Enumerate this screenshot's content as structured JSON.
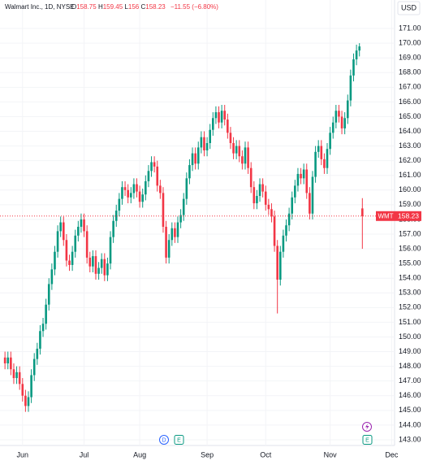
{
  "chart_data": {
    "type": "candlestick",
    "title": "Walmart Inc., 1D, NYSE",
    "ohlc_labels": [
      "O",
      "H",
      "L",
      "C"
    ],
    "change_label": "−11.55 (−6.80%)",
    "currency": "USD",
    "symbol": "WMT",
    "events": [
      "D",
      "E",
      "E"
    ],
    "up_color": "#089981",
    "down_color": "#f23645",
    "xlim": [
      -1.7,
      133
    ],
    "xticks": [
      {
        "value": 6,
        "label": "Jun"
      },
      {
        "value": 27,
        "label": "Jul"
      },
      {
        "value": 46,
        "label": "Aug"
      },
      {
        "value": 69,
        "label": "Sep"
      },
      {
        "value": 89,
        "label": "Oct"
      },
      {
        "value": 111,
        "label": "Nov"
      },
      {
        "value": 132,
        "label": "Dec"
      }
    ],
    "ylim": [
      142.61,
      172.94
    ],
    "yticks": [
      {
        "value": 143,
        "label": "143.00"
      },
      {
        "value": 144,
        "label": "144.00"
      },
      {
        "value": 145,
        "label": "145.00"
      },
      {
        "value": 146,
        "label": "146.00"
      },
      {
        "value": 147,
        "label": "147.00"
      },
      {
        "value": 148,
        "label": "148.00"
      },
      {
        "value": 149,
        "label": "149.00"
      },
      {
        "value": 150,
        "label": "150.00"
      },
      {
        "value": 151,
        "label": "151.00"
      },
      {
        "value": 152,
        "label": "152.00"
      },
      {
        "value": 153,
        "label": "153.00"
      },
      {
        "value": 154,
        "label": "154.00"
      },
      {
        "value": 155,
        "label": "155.00"
      },
      {
        "value": 156,
        "label": "156.00"
      },
      {
        "value": 157,
        "label": "157.00"
      },
      {
        "value": 158,
        "label": "158.00"
      },
      {
        "value": 159,
        "label": "159.00"
      },
      {
        "value": 160,
        "label": "160.00"
      },
      {
        "value": 161,
        "label": "161.00"
      },
      {
        "value": 162,
        "label": "162.00"
      },
      {
        "value": 163,
        "label": "163.00"
      },
      {
        "value": 164,
        "label": "164.00"
      },
      {
        "value": 165,
        "label": "165.00"
      },
      {
        "value": 166,
        "label": "166.00"
      },
      {
        "value": 167,
        "label": "167.00"
      },
      {
        "value": 168,
        "label": "168.00"
      },
      {
        "value": 169,
        "label": "169.00"
      },
      {
        "value": 170,
        "label": "170.00"
      },
      {
        "value": 171,
        "label": "171.00"
      }
    ],
    "open": [
      148.6,
      148.2,
      148.6,
      147.8,
      147.2,
      147.6,
      146.8,
      146.0,
      145.3,
      145.9,
      147.4,
      148.5,
      149.2,
      150.4,
      150.9,
      152.2,
      153.6,
      154.6,
      155.8,
      157.2,
      157.8,
      156.6,
      155.2,
      154.9,
      155.8,
      156.9,
      157.5,
      158.0,
      157.2,
      155.4,
      154.8,
      155.5,
      154.3,
      154.7,
      155.3,
      154.2,
      155.0,
      156.8,
      157.9,
      158.6,
      159.4,
      160.2,
      160.0,
      159.5,
      159.8,
      160.4,
      159.9,
      159.2,
      159.7,
      160.6,
      161.3,
      161.9,
      161.6,
      160.3,
      159.8,
      157.5,
      155.4,
      156.6,
      157.4,
      156.8,
      157.8,
      158.3,
      159.4,
      160.8,
      161.7,
      162.5,
      161.8,
      162.9,
      163.6,
      162.7,
      163.2,
      164.1,
      164.9,
      165.3,
      164.6,
      165.4,
      164.8,
      163.9,
      163.2,
      162.5,
      163.0,
      162.3,
      161.8,
      162.9,
      161.5,
      160.2,
      159.1,
      159.6,
      160.4,
      159.9,
      159.0,
      158.7,
      158.2,
      156.2,
      153.9,
      155.8,
      156.9,
      157.6,
      158.4,
      159.5,
      160.3,
      161.1,
      160.8,
      161.4,
      159.8,
      158.4,
      160.9,
      162.6,
      163.0,
      162.1,
      161.5,
      162.8,
      163.9,
      164.6,
      165.4,
      165.0,
      164.2,
      164.9,
      166.1,
      167.8,
      168.9,
      169.5,
      158.75
    ],
    "high": [
      149.0,
      149.0,
      149.0,
      148.2,
      148.0,
      148.0,
      147.2,
      146.4,
      146.3,
      147.8,
      148.9,
      149.6,
      150.8,
      151.3,
      152.6,
      154.0,
      155.0,
      156.2,
      157.6,
      158.2,
      158.2,
      157.0,
      155.6,
      156.2,
      157.3,
      157.9,
      158.4,
      158.4,
      157.6,
      155.8,
      155.9,
      155.9,
      155.1,
      155.7,
      155.7,
      155.4,
      157.2,
      158.3,
      159.0,
      159.8,
      160.6,
      160.6,
      160.4,
      160.2,
      160.8,
      160.8,
      160.3,
      160.1,
      161.0,
      161.7,
      162.3,
      162.3,
      162.0,
      160.7,
      160.2,
      157.9,
      157.0,
      157.8,
      157.8,
      158.2,
      158.7,
      159.8,
      161.2,
      162.1,
      162.9,
      162.9,
      163.3,
      164.0,
      164.0,
      163.6,
      164.5,
      165.3,
      165.7,
      165.7,
      165.8,
      165.8,
      165.2,
      164.3,
      163.6,
      163.4,
      163.4,
      162.7,
      163.3,
      163.3,
      161.9,
      160.6,
      160.0,
      160.8,
      160.8,
      160.3,
      159.4,
      159.1,
      158.6,
      156.6,
      156.2,
      157.3,
      158.0,
      158.8,
      159.9,
      160.7,
      161.5,
      161.5,
      161.8,
      161.8,
      160.2,
      161.3,
      163.0,
      163.4,
      163.4,
      162.5,
      163.2,
      164.3,
      165.0,
      165.8,
      165.8,
      165.4,
      165.3,
      166.5,
      168.2,
      169.3,
      169.9,
      170.0,
      159.45
    ],
    "low": [
      147.8,
      147.8,
      147.4,
      146.8,
      146.8,
      146.4,
      145.6,
      144.9,
      144.9,
      145.5,
      147.0,
      148.1,
      148.8,
      150.0,
      150.5,
      151.8,
      153.2,
      154.2,
      155.4,
      156.8,
      156.2,
      154.8,
      154.5,
      154.5,
      155.4,
      156.5,
      157.1,
      156.8,
      155.0,
      154.4,
      154.4,
      153.9,
      153.9,
      154.3,
      153.8,
      153.8,
      154.6,
      156.4,
      157.5,
      158.2,
      159.0,
      159.6,
      159.1,
      159.1,
      159.4,
      159.5,
      158.8,
      158.8,
      159.3,
      160.2,
      160.9,
      161.2,
      159.9,
      159.4,
      157.1,
      155.0,
      155.0,
      156.2,
      156.4,
      156.4,
      157.4,
      157.9,
      159.0,
      160.4,
      161.3,
      161.4,
      161.4,
      162.5,
      162.3,
      162.3,
      162.8,
      163.7,
      164.5,
      164.2,
      164.2,
      164.4,
      163.5,
      162.8,
      162.1,
      162.1,
      161.9,
      161.4,
      161.4,
      161.1,
      159.8,
      158.7,
      158.7,
      159.2,
      159.5,
      158.6,
      158.3,
      157.8,
      155.8,
      151.6,
      153.5,
      155.4,
      156.5,
      157.2,
      158.0,
      159.1,
      159.9,
      160.4,
      160.4,
      159.4,
      158.0,
      158.0,
      160.5,
      162.2,
      161.7,
      161.1,
      161.1,
      162.4,
      163.5,
      164.2,
      164.6,
      163.8,
      163.8,
      164.5,
      165.7,
      167.4,
      168.5,
      169.1,
      156.0
    ],
    "close": [
      148.2,
      148.6,
      147.8,
      147.2,
      147.6,
      146.8,
      146.0,
      145.3,
      145.9,
      147.4,
      148.5,
      149.2,
      150.4,
      150.9,
      152.2,
      153.6,
      154.6,
      155.8,
      157.2,
      157.8,
      156.6,
      155.2,
      154.9,
      155.8,
      156.9,
      157.5,
      158.0,
      157.2,
      155.4,
      154.8,
      155.5,
      154.3,
      154.7,
      155.3,
      154.2,
      155.0,
      156.8,
      157.9,
      158.6,
      159.4,
      160.2,
      160.0,
      159.5,
      159.8,
      160.4,
      159.9,
      159.2,
      159.7,
      160.6,
      161.3,
      161.9,
      161.6,
      160.3,
      159.8,
      157.5,
      155.4,
      156.6,
      157.4,
      156.8,
      157.8,
      158.3,
      159.4,
      160.8,
      161.7,
      162.5,
      161.8,
      162.9,
      163.6,
      162.7,
      163.2,
      164.1,
      164.9,
      165.3,
      164.6,
      165.4,
      164.8,
      163.9,
      163.2,
      162.5,
      163.0,
      162.3,
      161.8,
      162.9,
      161.5,
      160.2,
      159.1,
      159.6,
      160.4,
      159.9,
      159.0,
      158.7,
      158.2,
      156.2,
      153.9,
      155.8,
      156.9,
      157.6,
      158.4,
      159.5,
      160.3,
      161.1,
      160.8,
      161.4,
      159.8,
      158.4,
      160.9,
      162.6,
      163.0,
      162.1,
      161.5,
      162.8,
      163.9,
      164.6,
      165.4,
      165.0,
      164.2,
      164.9,
      166.1,
      167.8,
      168.9,
      169.5,
      169.78,
      158.23
    ]
  }
}
